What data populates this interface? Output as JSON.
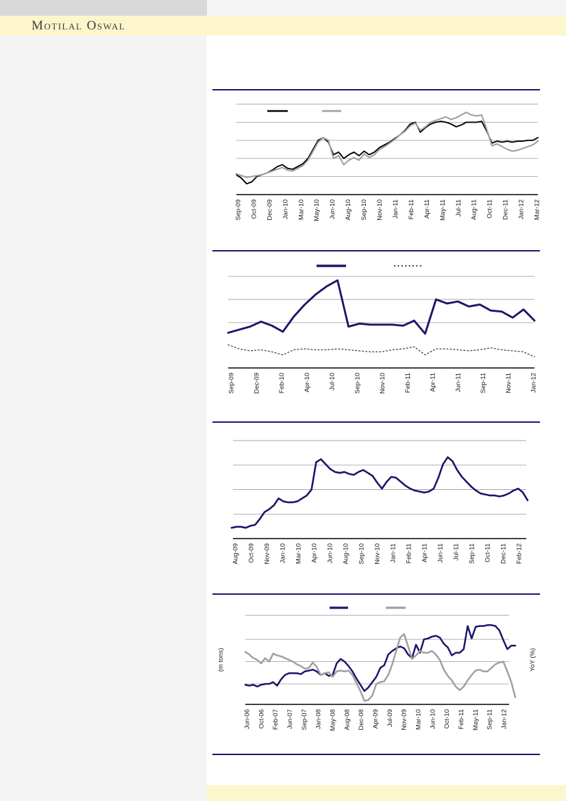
{
  "note": "Scanned research-report page: four untitled line charts; no numeric y-axis labels or legend text are visible in the source, so series values are estimated as percent of plot height (0 = x-axis, 100 = top gridline).",
  "header": {
    "brand": "Motilal Oswal"
  },
  "colors": {
    "navy": "#1B156B",
    "series_black": "#000000",
    "series_gray": "#A0A0A0",
    "series_dotted": "#3D3D3D",
    "gridline": "#A6A6A6",
    "band_yellow": "#FDF6CC",
    "topbar_gray": "#D9D9D9",
    "topbar_light": "#F5F5F5",
    "left_panel": "#F4F4F4",
    "brand_text": "#3B3B3B"
  },
  "chart_data": [
    {
      "type": "line",
      "title": "",
      "xlabel": "",
      "ylabel_left": "",
      "ylabel_right": "",
      "ylim": [
        0,
        100
      ],
      "grid": true,
      "y_tick_labels_visible": false,
      "legend_position": "top",
      "legend": [
        {
          "label": "",
          "style": "solid",
          "color": "#000000"
        },
        {
          "label": "",
          "style": "solid",
          "color": "#A0A0A0"
        }
      ],
      "x_tick_labels": [
        "Sep-09",
        "Oct-09",
        "Dec-09",
        "Jan-10",
        "Mar-10",
        "May-10",
        "Jun-10",
        "Aug-10",
        "Sep-10",
        "Nov-10",
        "Jan-11",
        "Feb-11",
        "Apr-11",
        "May-11",
        "Jul-11",
        "Aug-11",
        "Oct-11",
        "Dec-11",
        "Jan-12",
        "Mar-12"
      ],
      "series": [
        {
          "name": "series-black",
          "color": "#000000",
          "style": "solid",
          "values": [
            22,
            18,
            12,
            14,
            20,
            22,
            24,
            27,
            31,
            33,
            29,
            28,
            31,
            34,
            40,
            50,
            60,
            63,
            58,
            44,
            47,
            40,
            44,
            47,
            43,
            48,
            44,
            47,
            52,
            55,
            58,
            62,
            66,
            71,
            78,
            80,
            69,
            74,
            78,
            80,
            81,
            80,
            78,
            75,
            77,
            80,
            80,
            80,
            81,
            70,
            57,
            59,
            58,
            59,
            58,
            59,
            59,
            60,
            60,
            63
          ]
        },
        {
          "name": "series-gray",
          "color": "#A0A0A0",
          "style": "solid",
          "values": [
            23,
            21,
            19,
            20,
            21,
            22,
            24,
            26,
            28,
            30,
            27,
            26,
            29,
            32,
            38,
            48,
            58,
            63,
            60,
            40,
            43,
            33,
            38,
            41,
            38,
            45,
            41,
            44,
            50,
            53,
            57,
            61,
            66,
            70,
            76,
            79,
            71,
            75,
            80,
            82,
            84,
            86,
            83,
            85,
            88,
            91,
            88,
            87,
            88,
            72,
            54,
            56,
            53,
            50,
            48,
            49,
            51,
            53,
            55,
            59
          ]
        }
      ]
    },
    {
      "type": "line",
      "title": "",
      "xlabel": "",
      "ylabel_left": "",
      "ylabel_right": "",
      "ylim": [
        0,
        100
      ],
      "grid": true,
      "y_tick_labels_visible": false,
      "legend_position": "top",
      "legend": [
        {
          "label": "",
          "style": "solid",
          "color": "#1B156B"
        },
        {
          "label": "",
          "style": "dotted",
          "color": "#3D3D3D"
        }
      ],
      "x_tick_labels": [
        "Sep-09",
        "Dec-09",
        "Feb-10",
        "Apr-10",
        "Jul-10",
        "Sep-10",
        "Nov-10",
        "Feb-11",
        "Apr-11",
        "Jun-11",
        "Sep-11",
        "Nov-11",
        "Jan-12"
      ],
      "series": [
        {
          "name": "series-navy",
          "color": "#1B156B",
          "style": "solid",
          "values": [
            35,
            38,
            41,
            46,
            42,
            36,
            51,
            63,
            73,
            81,
            87,
            41,
            44,
            43,
            43,
            43,
            42,
            47,
            34,
            68,
            64,
            66,
            61,
            63,
            57,
            56,
            50,
            58,
            47
          ]
        },
        {
          "name": "series-dotted",
          "color": "#3D3D3D",
          "style": "dotted",
          "values": [
            23,
            19,
            17,
            18,
            16,
            13,
            18,
            19,
            18,
            18,
            19,
            18,
            17,
            16,
            16,
            18,
            19,
            21,
            13,
            19,
            19,
            18,
            17,
            18,
            20,
            18,
            17,
            16,
            11
          ]
        }
      ]
    },
    {
      "type": "line",
      "title": "",
      "xlabel": "",
      "ylabel_left": "",
      "ylabel_right": "",
      "ylim": [
        0,
        100
      ],
      "grid": true,
      "y_tick_labels_visible": false,
      "legend_position": "none",
      "legend": [],
      "x_tick_labels": [
        "Aug-09",
        "Oct-09",
        "Nov-09",
        "Jan-10",
        "Mar-10",
        "Apr-10",
        "Jun-10",
        "Aug-10",
        "Sep-10",
        "Nov-10",
        "Jan-11",
        "Feb-11",
        "Apr-11",
        "Jun-11",
        "Jul-11",
        "Sep-11",
        "Oct-11",
        "Dec-11",
        "Feb-12"
      ],
      "series": [
        {
          "name": "series-navy",
          "color": "#1B156B",
          "style": "solid",
          "values": [
            11,
            12,
            12,
            11,
            13,
            14,
            20,
            27,
            30,
            34,
            41,
            38,
            37,
            37,
            38,
            41,
            44,
            50,
            78,
            81,
            76,
            71,
            68,
            67,
            68,
            66,
            65,
            68,
            70,
            67,
            64,
            57,
            51,
            58,
            63,
            62,
            58,
            54,
            51,
            49,
            48,
            47,
            48,
            51,
            62,
            76,
            83,
            79,
            70,
            63,
            58,
            53,
            49,
            46,
            45,
            44,
            44,
            43,
            44,
            46,
            49,
            51,
            47,
            39
          ]
        }
      ]
    },
    {
      "type": "line",
      "title": "",
      "xlabel": "",
      "ylabel_left": "(m tons)",
      "ylabel_right": "YoY (%)",
      "ylim": [
        0,
        100
      ],
      "grid": true,
      "y_tick_labels_visible": false,
      "legend_position": "top",
      "legend": [
        {
          "label": "",
          "style": "solid",
          "color": "#1B156B"
        },
        {
          "label": "",
          "style": "solid",
          "color": "#A0A0A0"
        }
      ],
      "x_tick_labels": [
        "Jun-06",
        "Oct-06",
        "Feb-07",
        "Jun-07",
        "Sep-07",
        "Jan-08",
        "May-08",
        "Aug-08",
        "Dec-08",
        "Apr-09",
        "Jul-09",
        "Nov-09",
        "Mar-10",
        "Jun-10",
        "Oct-10",
        "Feb-11",
        "May-11",
        "Sep-11",
        "Jan-12"
      ],
      "series": [
        {
          "name": "series-navy-mtons",
          "color": "#1B156B",
          "style": "solid",
          "values": [
            22,
            21,
            22,
            20,
            22,
            23,
            23,
            25,
            21,
            28,
            33,
            35,
            35,
            35,
            34,
            37,
            38,
            39,
            37,
            33,
            35,
            32,
            33,
            46,
            51,
            48,
            43,
            37,
            29,
            22,
            15,
            19,
            25,
            31,
            41,
            44,
            56,
            60,
            63,
            65,
            63,
            56,
            52,
            67,
            58,
            73,
            74,
            76,
            77,
            75,
            68,
            64,
            55,
            58,
            58,
            62,
            88,
            74,
            87,
            88,
            88,
            89,
            89,
            88,
            83,
            72,
            62,
            66,
            66
          ]
        },
        {
          "name": "series-gray-yoy",
          "color": "#A0A0A0",
          "style": "solid",
          "values": [
            59,
            56,
            52,
            50,
            46,
            52,
            48,
            57,
            55,
            54,
            52,
            50,
            48,
            45,
            43,
            40,
            41,
            47,
            42,
            33,
            35,
            36,
            31,
            37,
            38,
            37,
            38,
            33,
            24,
            15,
            4,
            5,
            10,
            23,
            25,
            26,
            33,
            45,
            60,
            75,
            79,
            65,
            51,
            55,
            60,
            58,
            58,
            60,
            56,
            50,
            39,
            32,
            27,
            20,
            16,
            20,
            27,
            33,
            38,
            39,
            37,
            37,
            41,
            45,
            47,
            48,
            37,
            25,
            8
          ]
        }
      ]
    }
  ]
}
